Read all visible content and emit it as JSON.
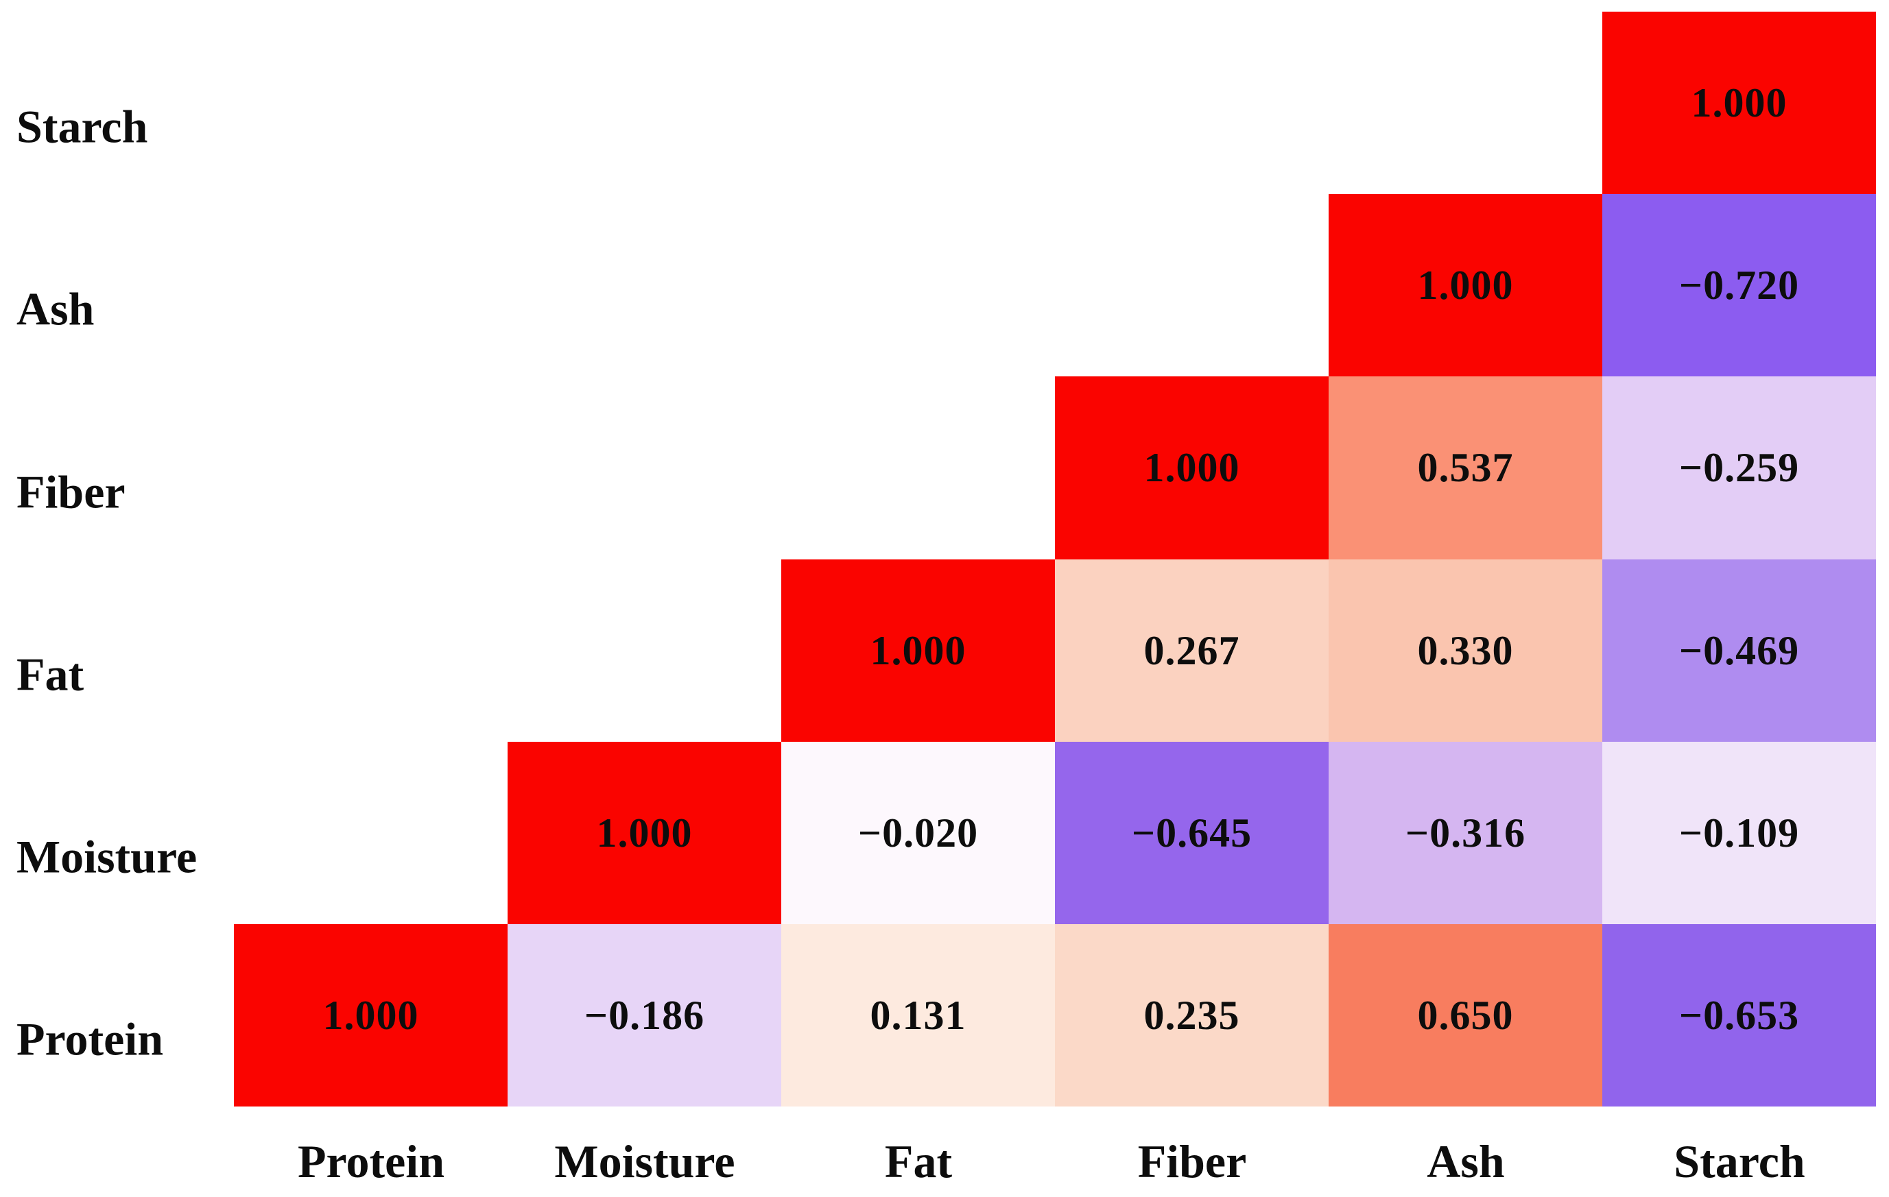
{
  "background": "#ffffff",
  "text_color": "#0d0d0d",
  "chart_data": {
    "type": "heatmap",
    "title": "",
    "subtitle": "",
    "legend": "none",
    "grid": "off",
    "value_range": [
      -1,
      1
    ],
    "colormap": {
      "positive_end": "#FA0400",
      "zero": "#FFFFFF",
      "negative_end": "#7B3BF2"
    },
    "rows": [
      "Starch",
      "Ash",
      "Fiber",
      "Fat",
      "Moisture",
      "Protein"
    ],
    "cols": [
      "Protein",
      "Moisture",
      "Fat",
      "Fiber",
      "Ash",
      "Starch"
    ],
    "cells": [
      {
        "row": "Starch",
        "col": "Starch",
        "r": 0,
        "c": 5,
        "value": 1.0,
        "label": "1.000",
        "color": "#FA0400"
      },
      {
        "row": "Ash",
        "col": "Ash",
        "r": 1,
        "c": 4,
        "value": 1.0,
        "label": "1.000",
        "color": "#FA0400"
      },
      {
        "row": "Ash",
        "col": "Starch",
        "r": 1,
        "c": 5,
        "value": -0.72,
        "label": "−0.720",
        "color": "#8C5CF0"
      },
      {
        "row": "Fiber",
        "col": "Fiber",
        "r": 2,
        "c": 3,
        "value": 1.0,
        "label": "1.000",
        "color": "#FA0400"
      },
      {
        "row": "Fiber",
        "col": "Ash",
        "r": 2,
        "c": 4,
        "value": 0.537,
        "label": "0.537",
        "color": "#FA9175"
      },
      {
        "row": "Fiber",
        "col": "Starch",
        "r": 2,
        "c": 5,
        "value": -0.259,
        "label": "−0.259",
        "color": "#E3CDF6"
      },
      {
        "row": "Fat",
        "col": "Fat",
        "r": 3,
        "c": 2,
        "value": 1.0,
        "label": "1.000",
        "color": "#FA0400"
      },
      {
        "row": "Fat",
        "col": "Fiber",
        "r": 3,
        "c": 3,
        "value": 0.267,
        "label": "0.267",
        "color": "#FBD2C0"
      },
      {
        "row": "Fat",
        "col": "Ash",
        "r": 3,
        "c": 4,
        "value": 0.33,
        "label": "0.330",
        "color": "#FAC5AF"
      },
      {
        "row": "Fat",
        "col": "Starch",
        "r": 3,
        "c": 5,
        "value": -0.469,
        "label": "−0.469",
        "color": "#AF8CF0"
      },
      {
        "row": "Moisture",
        "col": "Moisture",
        "r": 4,
        "c": 1,
        "value": 1.0,
        "label": "1.000",
        "color": "#FA0400"
      },
      {
        "row": "Moisture",
        "col": "Fat",
        "r": 4,
        "c": 2,
        "value": -0.02,
        "label": "−0.020",
        "color": "#FDF8FD"
      },
      {
        "row": "Moisture",
        "col": "Fiber",
        "r": 4,
        "c": 3,
        "value": -0.645,
        "label": "−0.645",
        "color": "#9566EC"
      },
      {
        "row": "Moisture",
        "col": "Ash",
        "r": 4,
        "c": 4,
        "value": -0.316,
        "label": "−0.316",
        "color": "#D5B6F1"
      },
      {
        "row": "Moisture",
        "col": "Starch",
        "r": 4,
        "c": 5,
        "value": -0.109,
        "label": "−0.109",
        "color": "#F0E4F9"
      },
      {
        "row": "Protein",
        "col": "Protein",
        "r": 5,
        "c": 0,
        "value": 1.0,
        "label": "1.000",
        "color": "#FA0400"
      },
      {
        "row": "Protein",
        "col": "Moisture",
        "r": 5,
        "c": 1,
        "value": -0.186,
        "label": "−0.186",
        "color": "#E7D5F7"
      },
      {
        "row": "Protein",
        "col": "Fat",
        "r": 5,
        "c": 2,
        "value": 0.131,
        "label": "0.131",
        "color": "#FDEADF"
      },
      {
        "row": "Protein",
        "col": "Fiber",
        "r": 5,
        "c": 3,
        "value": 0.235,
        "label": "0.235",
        "color": "#FBD9C8"
      },
      {
        "row": "Protein",
        "col": "Ash",
        "r": 5,
        "c": 4,
        "value": 0.65,
        "label": "0.650",
        "color": "#F87D5F"
      },
      {
        "row": "Protein",
        "col": "Starch",
        "r": 5,
        "c": 5,
        "value": -0.653,
        "label": "−0.653",
        "color": "#9164EC"
      }
    ]
  }
}
